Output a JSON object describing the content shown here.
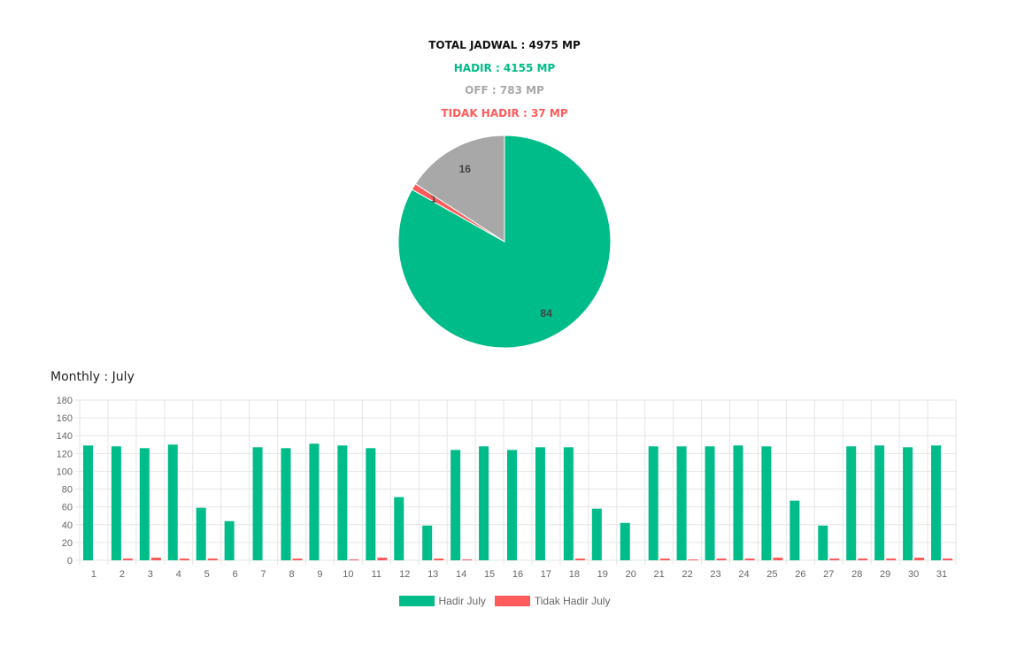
{
  "summary": {
    "total": "TOTAL JADWAL : 4975 MP",
    "hadir": "HADIR : 4155 MP",
    "off": "OFF : 783 MP",
    "tidak_hadir": "TIDAK HADIR : 37 MP"
  },
  "colors": {
    "hadir": "#00BC89",
    "off": "#A8A8A8",
    "tidak_hadir": "#FF5B5B",
    "total": "#111111",
    "grid": "#E6E6E6",
    "tick": "#666666"
  },
  "monthly_title": "Monthly : July",
  "chart_data": [
    {
      "type": "pie",
      "slices": [
        {
          "label": "Hadir",
          "value": 84,
          "display": "84",
          "color": "#00BC89"
        },
        {
          "label": "Tidak Hadir",
          "value": 1,
          "display": "1",
          "color": "#FF5B5B"
        },
        {
          "label": "Off",
          "value": 16,
          "display": "16",
          "color": "#A8A8A8"
        }
      ]
    },
    {
      "type": "bar",
      "categories": [
        "1",
        "2",
        "3",
        "4",
        "5",
        "6",
        "7",
        "8",
        "9",
        "10",
        "11",
        "12",
        "13",
        "14",
        "15",
        "16",
        "17",
        "18",
        "19",
        "20",
        "21",
        "22",
        "23",
        "24",
        "25",
        "26",
        "27",
        "28",
        "29",
        "30",
        "31"
      ],
      "series": [
        {
          "name": "Hadir July",
          "color": "#00BC89",
          "values": [
            129,
            128,
            126,
            130,
            59,
            44,
            127,
            126,
            131,
            129,
            126,
            71,
            39,
            124,
            128,
            124,
            127,
            127,
            58,
            42,
            128,
            128,
            128,
            129,
            128,
            67,
            39,
            128,
            129,
            127,
            129
          ]
        },
        {
          "name": "Tidak Hadir July",
          "color": "#FF5B5B",
          "values": [
            0,
            2,
            3,
            2,
            2,
            0,
            0,
            2,
            0,
            1,
            3,
            0,
            2,
            1,
            0,
            0,
            0,
            2,
            0,
            0,
            2,
            1,
            2,
            2,
            3,
            0,
            2,
            2,
            2,
            3,
            2
          ]
        }
      ],
      "ylim": [
        0,
        180
      ],
      "yticks": [
        0,
        20,
        40,
        60,
        80,
        100,
        120,
        140,
        160,
        180
      ],
      "grid": true,
      "legend": "bottom"
    }
  ]
}
